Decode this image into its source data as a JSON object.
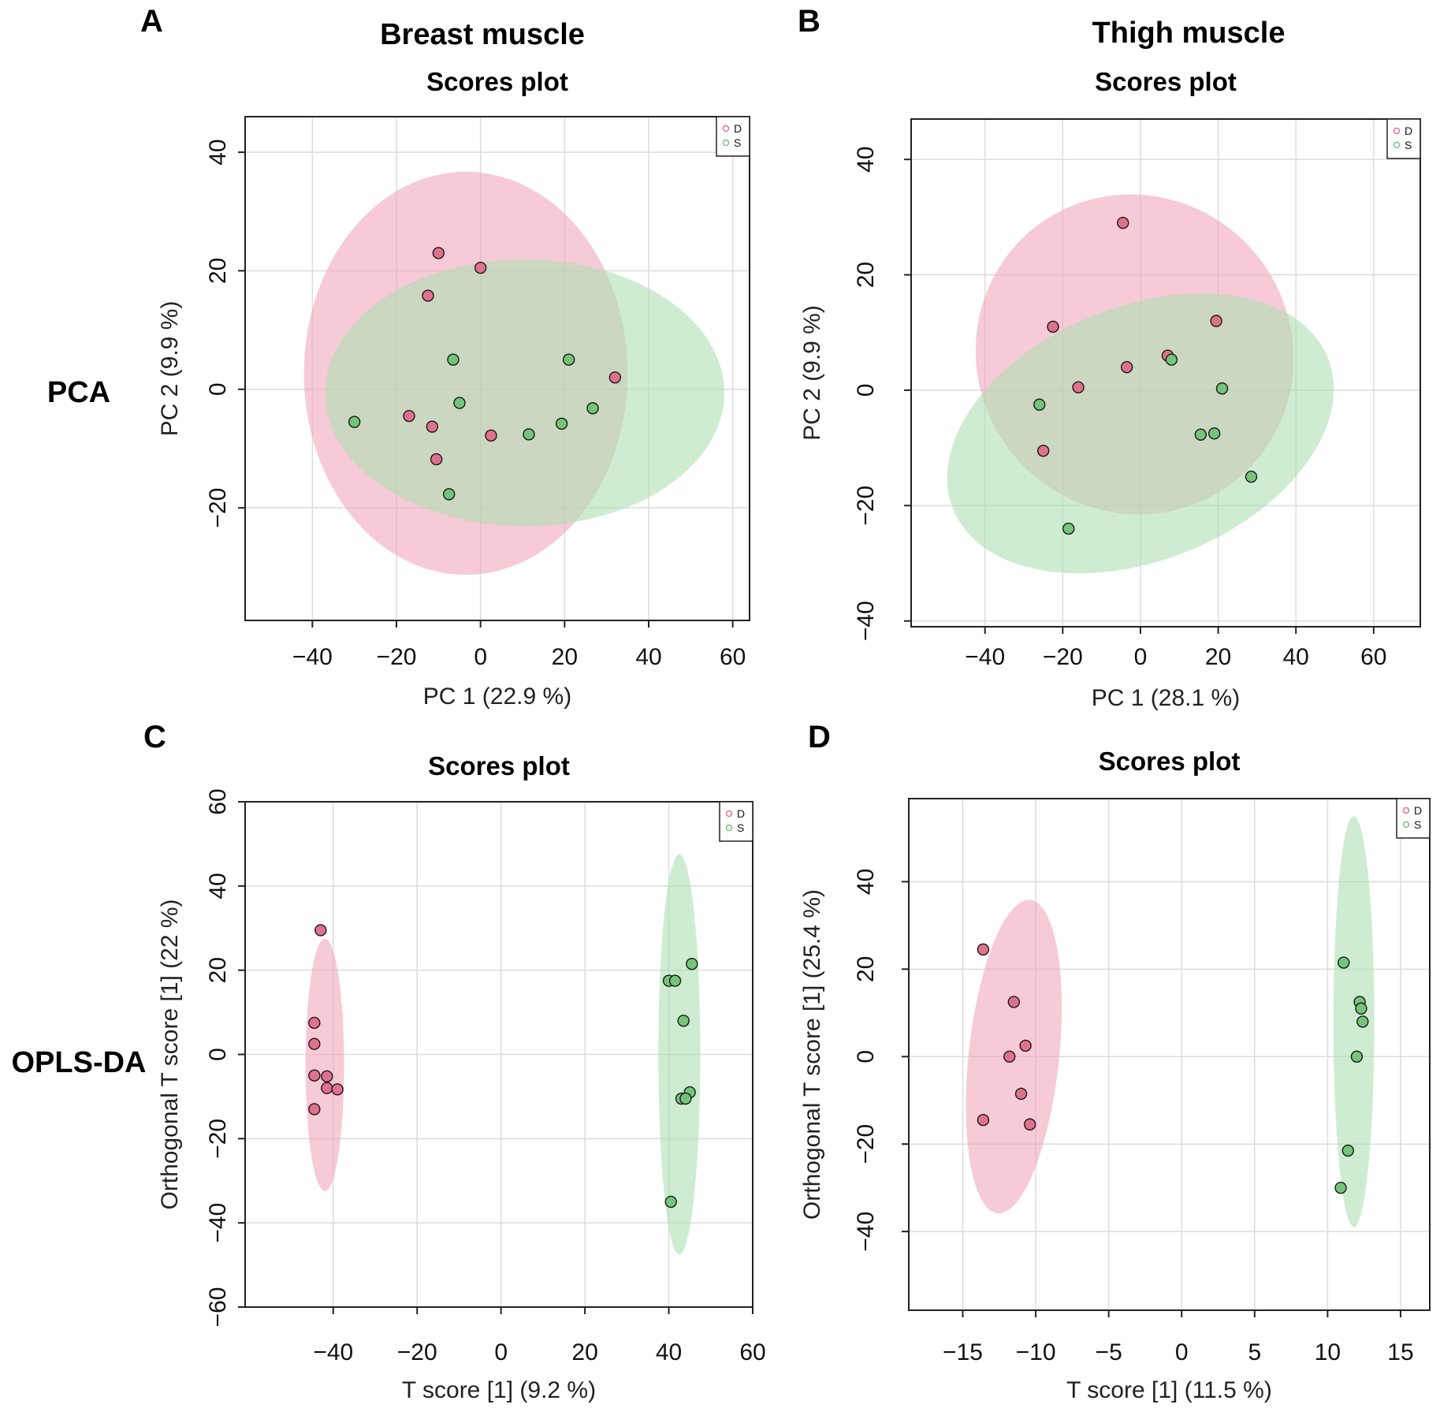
{
  "figure": {
    "row_labels": [
      "PCA",
      "OPLS-DA"
    ],
    "column_titles": [
      "Breast muscle",
      "Thigh muscle"
    ]
  },
  "colors": {
    "D_point": "#e0718c",
    "S_point": "#74c47a",
    "D_ellipse": "#f1a7bd",
    "S_ellipse": "#aedfb2"
  },
  "chart_data": [
    {
      "panel": "A",
      "type": "scatter",
      "title": "Scores plot",
      "xlabel": "PC 1 (22.9 %)",
      "ylabel": "PC 2 (9.9 %)",
      "xlim": [
        -56,
        64
      ],
      "ylim": [
        -39,
        46
      ],
      "xticks": [
        -40,
        -20,
        0,
        20,
        40,
        60
      ],
      "yticks": [
        -20,
        0,
        20,
        40
      ],
      "grid": true,
      "legend": [
        "D",
        "S"
      ],
      "legend_position": "top-right",
      "series": [
        {
          "name": "D",
          "points": [
            [
              -10,
              23
            ],
            [
              0,
              20.5
            ],
            [
              -12.5,
              15.8
            ],
            [
              32,
              2
            ],
            [
              -17,
              -4.5
            ],
            [
              -11.5,
              -6.3
            ],
            [
              2.5,
              -7.8
            ],
            [
              -10.5,
              -11.8
            ]
          ],
          "ellipse": {
            "cx": -3.5,
            "cy": 2.7,
            "rx": 38.5,
            "ry": 34
          }
        },
        {
          "name": "S",
          "points": [
            [
              -30,
              -5.5
            ],
            [
              -6.5,
              5
            ],
            [
              -5,
              -2.3
            ],
            [
              21,
              5
            ],
            [
              26.7,
              -3.2
            ],
            [
              19.3,
              -5.8
            ],
            [
              11.5,
              -7.6
            ],
            [
              -7.5,
              -17.7
            ]
          ],
          "ellipse": {
            "cx": 10.5,
            "cy": -0.6,
            "rx": 47.5,
            "ry": 22.5
          }
        }
      ]
    },
    {
      "panel": "B",
      "type": "scatter",
      "title": "Scores plot",
      "xlabel": "PC 1 (28.1 %)",
      "ylabel": "PC 2 (9.9 %)",
      "xlim": [
        -59,
        72
      ],
      "ylim": [
        -41,
        47
      ],
      "xticks": [
        -40,
        -20,
        0,
        20,
        40,
        60
      ],
      "yticks": [
        -40,
        -20,
        0,
        20,
        40
      ],
      "grid": true,
      "legend": [
        "D",
        "S"
      ],
      "legend_position": "top-right",
      "series": [
        {
          "name": "D",
          "points": [
            [
              -4.5,
              29
            ],
            [
              -22.5,
              11
            ],
            [
              19.5,
              12
            ],
            [
              7,
              6
            ],
            [
              -3.5,
              4
            ],
            [
              -16,
              0.5
            ],
            [
              -25,
              -10.5
            ]
          ],
          "ellipse": {
            "cx": -1.5,
            "cy": 6.2,
            "rx": 40.5,
            "ry": 28,
            "angle": 38
          }
        },
        {
          "name": "S",
          "points": [
            [
              8,
              5.3
            ],
            [
              21,
              0.3
            ],
            [
              -26,
              -2.5
            ],
            [
              15.5,
              -7.7
            ],
            [
              19,
              -7.5
            ],
            [
              28.5,
              -15
            ],
            [
              -18.5,
              -24
            ]
          ],
          "ellipse": {
            "cx": 0,
            "cy": -7.5,
            "rx": 52,
            "ry": 22,
            "angle": 22
          }
        }
      ]
    },
    {
      "panel": "C",
      "type": "scatter",
      "title": "Scores plot",
      "xlabel": "T score [1] (9.2 %)",
      "ylabel": "Orthogonal T score [1] (22 %)",
      "xlim": [
        -61,
        60
      ],
      "ylim": [
        -60,
        60
      ],
      "xticks": [
        -40,
        -20,
        0,
        20,
        40,
        60
      ],
      "yticks": [
        -60,
        -40,
        -20,
        0,
        20,
        40,
        60
      ],
      "grid": true,
      "legend": [
        "D",
        "S"
      ],
      "legend_position": "top-right",
      "series": [
        {
          "name": "D",
          "points": [
            [
              -43,
              29.5
            ],
            [
              -44.5,
              7.5
            ],
            [
              -44.5,
              2.5
            ],
            [
              -44.5,
              -5
            ],
            [
              -41.5,
              -5.2
            ],
            [
              -41.5,
              -8
            ],
            [
              -39,
              -8.3
            ],
            [
              -44.5,
              -13
            ]
          ],
          "ellipse": {
            "cx": -42,
            "cy": -2.5,
            "rx": 4.6,
            "ry": 30
          }
        },
        {
          "name": "S",
          "points": [
            [
              45.5,
              21.5
            ],
            [
              40,
              17.5
            ],
            [
              41.5,
              17.5
            ],
            [
              43.5,
              8
            ],
            [
              45,
              -9
            ],
            [
              43,
              -10.5
            ],
            [
              44,
              -10.5
            ],
            [
              40.5,
              -35
            ]
          ],
          "ellipse": {
            "cx": 42.5,
            "cy": 0,
            "rx": 5,
            "ry": 47.5
          }
        }
      ]
    },
    {
      "panel": "D",
      "type": "scatter",
      "title": "Scores plot",
      "xlabel": "T score [1] (11.5 %)",
      "ylabel": "Orthogonal T score [1] (25.4 %)",
      "xlim": [
        -18.7,
        17
      ],
      "ylim": [
        -58,
        59
      ],
      "xticks": [
        -15,
        -10,
        -5,
        0,
        5,
        10,
        15
      ],
      "yticks": [
        -40,
        -20,
        0,
        20,
        40
      ],
      "grid": true,
      "legend": [
        "D",
        "S"
      ],
      "legend_position": "top-right",
      "series": [
        {
          "name": "D",
          "points": [
            [
              -13.6,
              24.5
            ],
            [
              -11.5,
              12.5
            ],
            [
              -10.7,
              2.5
            ],
            [
              -11.8,
              0
            ],
            [
              -11,
              -8.5
            ],
            [
              -10.4,
              -15.5
            ],
            [
              -13.6,
              -14.5
            ]
          ],
          "ellipse": {
            "cx": -11.5,
            "cy": 0,
            "rx": 3.1,
            "ry": 36,
            "angle": -6
          }
        },
        {
          "name": "S",
          "points": [
            [
              11.1,
              21.5
            ],
            [
              12.2,
              12.5
            ],
            [
              12.3,
              11
            ],
            [
              12.4,
              8
            ],
            [
              12,
              0
            ],
            [
              11.4,
              -21.5
            ],
            [
              10.9,
              -30
            ]
          ],
          "ellipse": {
            "cx": 11.8,
            "cy": 8,
            "rx": 1.4,
            "ry": 47
          }
        }
      ]
    }
  ]
}
